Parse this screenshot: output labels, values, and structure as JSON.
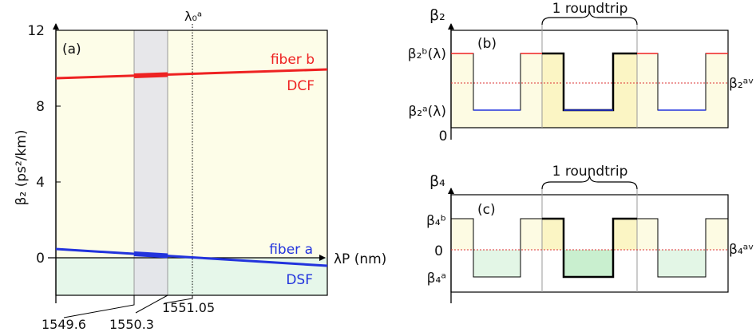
{
  "panel_a": {
    "label": "(a)",
    "y_axis_label": "β₂ (ps²/km)",
    "y_ticks": [
      "12",
      "8",
      "4",
      "0"
    ],
    "x_axis_label": "λP (nm)",
    "lambda0_label": "λ₀ᵃ",
    "wavelength_markers": [
      "1549.6",
      "1550.3",
      "1551.05"
    ],
    "fiber_b": {
      "name": "fiber b",
      "type": "DCF",
      "color": "#ee2222"
    },
    "fiber_a": {
      "name": "fiber a",
      "type": "DSF",
      "color": "#2233dd"
    }
  },
  "panel_b": {
    "label": "(b)",
    "y_title": "β₂",
    "level_high": "β₂ᵇ(λ)",
    "level_low": "β₂ᵃ(λ)",
    "average": "β₂ᵃᵛ",
    "zero": "0",
    "roundtrip": "1 roundtrip"
  },
  "panel_c": {
    "label": "(c)",
    "y_title": "β₄",
    "level_high": "β₄ᵇ",
    "level_low": "β₄ᵃ",
    "average": "β₄ᵃᵛ",
    "zero": "0",
    "roundtrip": "1 roundtrip"
  },
  "colors": {
    "fiber_b": "#ee2222",
    "fiber_a": "#2233dd",
    "average": "#dd3333",
    "yellow_fill": "#fdfbe3",
    "green_fill": "#ddf5e0"
  }
}
